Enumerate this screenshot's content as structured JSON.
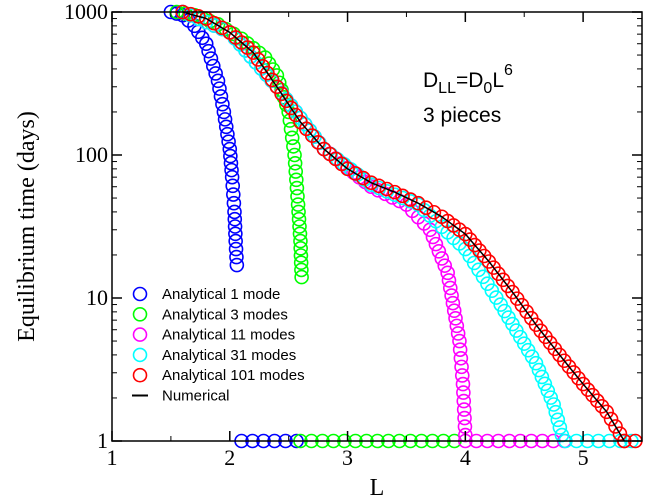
{
  "chart_data": {
    "type": "scatter",
    "xlabel": "L",
    "ylabel": "Equilibrium time (days)",
    "xlim": [
      1,
      5.5
    ],
    "ylim": [
      1,
      1000
    ],
    "yscale": "log",
    "x_ticks": [
      "1",
      "2",
      "3",
      "4",
      "5"
    ],
    "y_ticks": [
      "1",
      "10",
      "100",
      "1000"
    ],
    "legend_position": "bottom-left",
    "annotations": {
      "line1": {
        "base": "D",
        "sub1": "LL",
        "mid": "=D",
        "sub2": "0",
        "mid2": "L",
        "sup": "6"
      },
      "line2": "3 pieces"
    },
    "series": [
      {
        "name": "Analytical 1 mode",
        "color": "#0000ff",
        "marker": "circle",
        "points": [
          [
            1.5,
            1000
          ],
          [
            1.6,
            950
          ],
          [
            1.7,
            800
          ],
          [
            1.8,
            600
          ],
          [
            1.9,
            330
          ],
          [
            1.95,
            200
          ],
          [
            2.0,
            110
          ],
          [
            2.02,
            70
          ],
          [
            2.04,
            40
          ],
          [
            2.05,
            25
          ],
          [
            2.06,
            17
          ]
        ],
        "floor_range": [
          2.1,
          2.6
        ]
      },
      {
        "name": "Analytical 3 modes",
        "color": "#00ff00",
        "marker": "circle",
        "points": [
          [
            1.55,
            1000
          ],
          [
            1.7,
            950
          ],
          [
            1.9,
            820
          ],
          [
            2.1,
            650
          ],
          [
            2.3,
            480
          ],
          [
            2.4,
            360
          ],
          [
            2.5,
            200
          ],
          [
            2.55,
            100
          ],
          [
            2.58,
            45
          ],
          [
            2.6,
            25
          ],
          [
            2.61,
            14
          ]
        ],
        "floor_range": [
          2.6,
          4.0
        ]
      },
      {
        "name": "Analytical 11 modes",
        "color": "#ff00ff",
        "marker": "circle",
        "points": [
          [
            1.6,
            1000
          ],
          [
            2.0,
            720
          ],
          [
            2.4,
            300
          ],
          [
            2.8,
            110
          ],
          [
            3.2,
            60
          ],
          [
            3.5,
            45
          ],
          [
            3.7,
            30
          ],
          [
            3.85,
            15
          ],
          [
            3.95,
            5
          ],
          [
            3.98,
            2.5
          ],
          [
            4.0,
            1.1
          ]
        ],
        "floor_range": [
          4.0,
          4.85
        ]
      },
      {
        "name": "Analytical 31 modes",
        "color": "#00ffff",
        "marker": "circle",
        "points": [
          [
            1.6,
            1000
          ],
          [
            2.0,
            720
          ],
          [
            2.4,
            300
          ],
          [
            2.8,
            110
          ],
          [
            3.2,
            62
          ],
          [
            3.6,
            45
          ],
          [
            4.0,
            22
          ],
          [
            4.3,
            9
          ],
          [
            4.6,
            3.5
          ],
          [
            4.75,
            1.8
          ],
          [
            4.82,
            1.1
          ]
        ],
        "floor_range": [
          4.85,
          5.5
        ]
      },
      {
        "name": "Analytical 101 modes",
        "color": "#ff0000",
        "marker": "circle",
        "points": [
          [
            1.6,
            1000
          ],
          [
            1.8,
            900
          ],
          [
            2.0,
            720
          ],
          [
            2.2,
            520
          ],
          [
            2.4,
            300
          ],
          [
            2.6,
            170
          ],
          [
            2.8,
            110
          ],
          [
            3.0,
            80
          ],
          [
            3.2,
            64
          ],
          [
            3.4,
            55
          ],
          [
            3.6,
            46
          ],
          [
            3.8,
            37
          ],
          [
            4.0,
            28
          ],
          [
            4.2,
            18
          ],
          [
            4.4,
            11
          ],
          [
            4.6,
            6.5
          ],
          [
            4.8,
            4
          ],
          [
            5.0,
            2.5
          ],
          [
            5.2,
            1.6
          ],
          [
            5.35,
            1.0
          ]
        ],
        "floor_range": [
          5.35,
          5.5
        ]
      },
      {
        "name": "Numerical",
        "color": "#000000",
        "marker": "line",
        "points": [
          [
            1.6,
            1000
          ],
          [
            1.8,
            900
          ],
          [
            2.0,
            720
          ],
          [
            2.2,
            520
          ],
          [
            2.4,
            300
          ],
          [
            2.6,
            170
          ],
          [
            2.8,
            110
          ],
          [
            3.0,
            80
          ],
          [
            3.2,
            64
          ],
          [
            3.4,
            55
          ],
          [
            3.6,
            46
          ],
          [
            3.8,
            37
          ],
          [
            4.0,
            28
          ],
          [
            4.2,
            18
          ],
          [
            4.4,
            11
          ],
          [
            4.6,
            6.5
          ],
          [
            4.8,
            4
          ],
          [
            5.0,
            2.5
          ],
          [
            5.2,
            1.6
          ],
          [
            5.35,
            1.0
          ]
        ]
      }
    ]
  }
}
